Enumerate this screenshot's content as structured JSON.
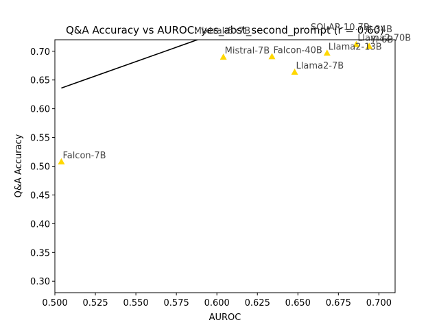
{
  "chart_data": {
    "type": "scatter",
    "title": "Q&A Accuracy vs AUROC: yes_abst_second_prompt (r = 0.60)",
    "xlabel": "AUROC",
    "ylabel": "Q&A Accuracy",
    "xlim": [
      0.5,
      0.71
    ],
    "ylim": [
      0.28,
      0.72
    ],
    "xticks": [
      "0.500",
      "0.525",
      "0.550",
      "0.575",
      "0.600",
      "0.625",
      "0.650",
      "0.675",
      "0.700"
    ],
    "yticks": [
      "0.30",
      "0.35",
      "0.40",
      "0.45",
      "0.50",
      "0.55",
      "0.60",
      "0.65",
      "0.70"
    ],
    "grid": false,
    "marker_color": "#ffd700",
    "points": [
      {
        "label": "Falcon-7B",
        "x": 0.504,
        "y": 0.508
      },
      {
        "label": "Mixtral-8x7B",
        "x": 0.585,
        "y": 0.725
      },
      {
        "label": "Mistral-7B",
        "x": 0.604,
        "y": 0.69
      },
      {
        "label": "Falcon-40B",
        "x": 0.634,
        "y": 0.691
      },
      {
        "label": "Llama2-7B",
        "x": 0.648,
        "y": 0.664
      },
      {
        "label": "SOLAR-10.7B",
        "x": 0.657,
        "y": 0.731
      },
      {
        "label": "Llama2-13B",
        "x": 0.668,
        "y": 0.697
      },
      {
        "label": "Llama2-70B",
        "x": 0.686,
        "y": 0.712
      },
      {
        "label": "Yi-34B",
        "x": 0.69,
        "y": 0.727
      },
      {
        "label": "Yi-6B",
        "x": 0.694,
        "y": 0.709
      }
    ],
    "fit_line": {
      "color": "#000000",
      "x": [
        0.504,
        0.59
      ],
      "y": [
        0.636,
        0.722
      ]
    }
  }
}
